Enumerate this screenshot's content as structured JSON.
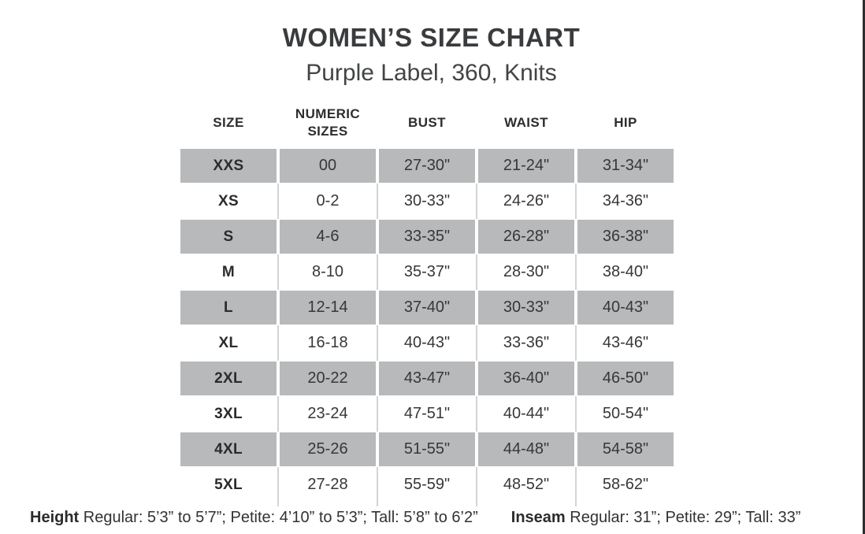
{
  "header": {
    "title": "WOMEN’S SIZE CHART",
    "subtitle": "Purple Label, 360, Knits"
  },
  "table": {
    "columns": [
      "SIZE",
      "NUMERIC SIZES",
      "BUST",
      "WAIST",
      "HIP"
    ],
    "shaded_row_color": "#b7b9bb",
    "separator_color": "#d2d4d5",
    "rows": [
      {
        "size": "XXS",
        "numeric": "00",
        "bust": "27-30\"",
        "waist": "21-24\"",
        "hip": "31-34\""
      },
      {
        "size": "XS",
        "numeric": "0-2",
        "bust": "30-33\"",
        "waist": "24-26\"",
        "hip": "34-36\""
      },
      {
        "size": "S",
        "numeric": "4-6",
        "bust": "33-35\"",
        "waist": "26-28\"",
        "hip": "36-38\""
      },
      {
        "size": "M",
        "numeric": "8-10",
        "bust": "35-37\"",
        "waist": "28-30\"",
        "hip": "38-40\""
      },
      {
        "size": "L",
        "numeric": "12-14",
        "bust": "37-40\"",
        "waist": "30-33\"",
        "hip": "40-43\""
      },
      {
        "size": "XL",
        "numeric": "16-18",
        "bust": "40-43\"",
        "waist": "33-36\"",
        "hip": "43-46\""
      },
      {
        "size": "2XL",
        "numeric": "20-22",
        "bust": "43-47\"",
        "waist": "36-40\"",
        "hip": "46-50\""
      },
      {
        "size": "3XL",
        "numeric": "23-24",
        "bust": "47-51\"",
        "waist": "40-44\"",
        "hip": "50-54\""
      },
      {
        "size": "4XL",
        "numeric": "25-26",
        "bust": "51-55\"",
        "waist": "44-48\"",
        "hip": "54-58\""
      },
      {
        "size": "5XL",
        "numeric": "27-28",
        "bust": "55-59\"",
        "waist": "48-52\"",
        "hip": "58-62\""
      }
    ]
  },
  "footnote": {
    "height_label": "Height",
    "height_text": " Regular: 5’3” to 5’7”; Petite: 4’10” to 5’3”; Tall: 5’8” to 6’2”",
    "inseam_label": "Inseam",
    "inseam_text": " Regular: 31”;  Petite: 29”; Tall: 33”"
  }
}
